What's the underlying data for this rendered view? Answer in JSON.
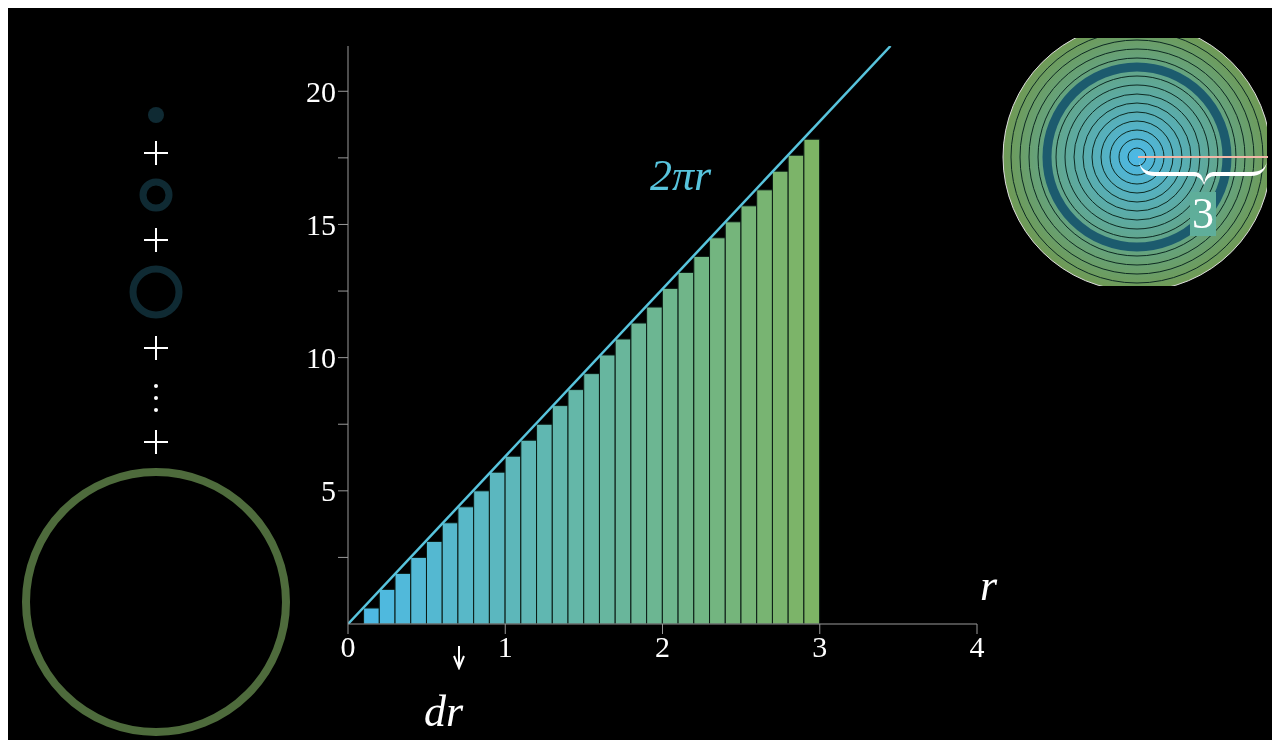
{
  "chart_data": {
    "type": "histogram",
    "bins": [
      0,
      0.1,
      0.2,
      0.3,
      0.4,
      0.5,
      0.6,
      0.7,
      0.8,
      0.9,
      1.0,
      1.1,
      1.2,
      1.3,
      1.4,
      1.5,
      1.6,
      1.7,
      1.8,
      1.9,
      2.0,
      2.1,
      2.2,
      2.3,
      2.4,
      2.5,
      2.6,
      2.7,
      2.8,
      2.9,
      3.0
    ],
    "values": [
      0,
      0.6,
      1.3,
      1.9,
      2.5,
      3.1,
      3.8,
      4.4,
      5.0,
      5.7,
      6.3,
      6.9,
      7.5,
      8.2,
      8.8,
      9.4,
      10.1,
      10.7,
      11.3,
      11.9,
      12.6,
      13.2,
      13.8,
      14.5,
      15.1,
      15.7,
      16.3,
      17.0,
      17.6,
      18.2
    ],
    "colors": [
      "#4cb9e7",
      "#4eb9e3",
      "#4fb9de",
      "#51b9da",
      "#53b8d5",
      "#54b8d1",
      "#56b8cc",
      "#58b8c8",
      "#5ab8c3",
      "#5bb7bf",
      "#5db7ba",
      "#5fb7b6",
      "#60b7b1",
      "#62b7ad",
      "#64b7a8",
      "#65b6a4",
      "#67b69f",
      "#69b69b",
      "#6bb696",
      "#6cb692",
      "#6eb68d",
      "#70b589",
      "#71b584",
      "#73b580",
      "#75b57b",
      "#76b577",
      "#78b472",
      "#7ab46e",
      "#7cb469",
      "#7db465"
    ],
    "series": [
      {
        "type": "line",
        "color": "#58c4dd",
        "x": [
          0,
          3.45
        ],
        "values": [
          0,
          21.7
        ]
      }
    ],
    "xlabel": "r",
    "xlim": [
      0,
      4
    ],
    "xticks": [
      0,
      1,
      2,
      3,
      4
    ],
    "ylim": [
      0,
      21.7
    ],
    "yticks": [
      {
        "value": 2.5,
        "label": null
      },
      5,
      {
        "value": 7.5,
        "label": null
      },
      10,
      {
        "value": 12.5,
        "label": null
      },
      15,
      {
        "value": 17.5,
        "label": null
      },
      20
    ],
    "annotations": [
      "2πr",
      "dr",
      "3"
    ]
  }
}
